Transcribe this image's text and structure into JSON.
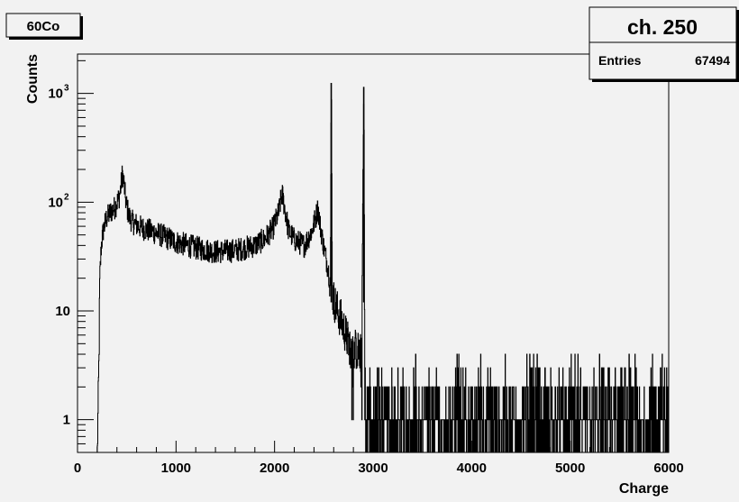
{
  "canvas": {
    "background": "#f2f2f2",
    "frame_color": "#000000",
    "line_color": "#000000"
  },
  "title_box": {
    "label": "60Co"
  },
  "stats_box": {
    "title": "ch. 250",
    "entries_label": "Entries",
    "entries_value": "67494"
  },
  "chart_data": {
    "type": "line",
    "title": "60Co",
    "xlabel": "Charge",
    "ylabel": "Counts",
    "xlim": [
      0,
      6000
    ],
    "ylim": [
      0.5,
      2300
    ],
    "y_scale": "log",
    "grid": false,
    "x_ticks": [
      {
        "value": 0,
        "label": "0"
      },
      {
        "value": 1000,
        "label": "1000"
      },
      {
        "value": 2000,
        "label": "2000"
      },
      {
        "value": 3000,
        "label": "3000"
      },
      {
        "value": 4000,
        "label": "4000"
      },
      {
        "value": 5000,
        "label": "5000"
      },
      {
        "value": 6000,
        "label": "6000"
      }
    ],
    "y_ticks": [
      {
        "value": 1,
        "label": "1"
      },
      {
        "value": 10,
        "label": "10"
      },
      {
        "value": 100,
        "base": "10",
        "exp": "2"
      },
      {
        "value": 1000,
        "base": "10",
        "exp": "3"
      }
    ],
    "series": [
      {
        "style": "histogram",
        "envelope": [
          [
            200,
            0.5
          ],
          [
            215,
            3
          ],
          [
            225,
            20
          ],
          [
            240,
            40
          ],
          [
            260,
            55
          ],
          [
            290,
            70
          ],
          [
            330,
            80
          ],
          [
            380,
            90
          ],
          [
            420,
            110
          ],
          [
            440,
            140
          ],
          [
            455,
            185
          ],
          [
            470,
            150
          ],
          [
            490,
            100
          ],
          [
            520,
            75
          ],
          [
            560,
            65
          ],
          [
            650,
            58
          ],
          [
            800,
            52
          ],
          [
            1000,
            43
          ],
          [
            1200,
            38
          ],
          [
            1400,
            35
          ],
          [
            1600,
            36
          ],
          [
            1800,
            40
          ],
          [
            1900,
            46
          ],
          [
            1980,
            57
          ],
          [
            2040,
            80
          ],
          [
            2075,
            120
          ],
          [
            2100,
            90
          ],
          [
            2140,
            55
          ],
          [
            2200,
            45
          ],
          [
            2300,
            40
          ],
          [
            2380,
            55
          ],
          [
            2420,
            75
          ],
          [
            2440,
            88
          ],
          [
            2460,
            62
          ],
          [
            2500,
            38
          ],
          [
            2540,
            25
          ],
          [
            2565,
            18
          ],
          [
            2575,
            1250
          ],
          [
            2585,
            14
          ],
          [
            2620,
            11
          ],
          [
            2680,
            8
          ],
          [
            2750,
            5
          ],
          [
            2880,
            4
          ],
          [
            2905,
            1150
          ],
          [
            2915,
            1.1
          ],
          [
            6000,
            1.1
          ]
        ],
        "noise_range": [
          2915,
          6000
        ],
        "noise_top_counts": [
          1,
          2,
          3,
          4
        ],
        "noise_weights": [
          0.63,
          0.27,
          0.07,
          0.03
        ]
      }
    ]
  }
}
